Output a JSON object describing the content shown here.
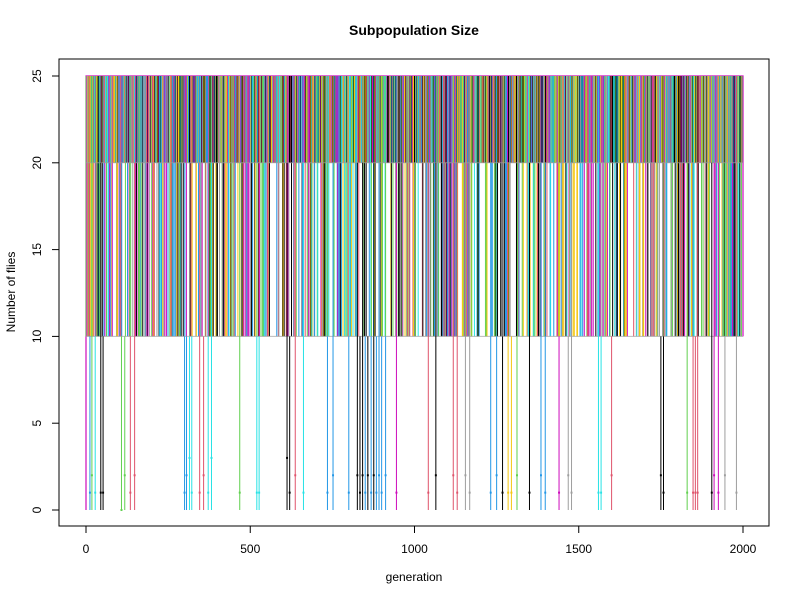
{
  "chart_data": {
    "type": "line",
    "title": "Subpopulation Size",
    "xlabel": "generation",
    "ylabel": "Number of flies",
    "xlim": [
      0,
      2000
    ],
    "ylim": [
      0,
      25
    ],
    "xticks": [
      0,
      500,
      1000,
      1500,
      2000
    ],
    "yticks": [
      0,
      5,
      10,
      15,
      20,
      25
    ],
    "plateau_levels": [
      25,
      20,
      10
    ],
    "colors": [
      "#000000",
      "#DF536B",
      "#61D04F",
      "#2297E6",
      "#28E2E5",
      "#CD0BBC",
      "#F5C710",
      "#9E9E9E"
    ],
    "low_dips": [
      {
        "x": 12,
        "y": 1,
        "c": 3
      },
      {
        "x": 18,
        "y": 2,
        "c": 2
      },
      {
        "x": 28,
        "y": 1,
        "c": 4
      },
      {
        "x": 45,
        "y": 1,
        "c": 0
      },
      {
        "x": 52,
        "y": 1,
        "c": 0
      },
      {
        "x": 108,
        "y": 0,
        "c": 2
      },
      {
        "x": 118,
        "y": 2,
        "c": 2
      },
      {
        "x": 135,
        "y": 1,
        "c": 1
      },
      {
        "x": 148,
        "y": 2,
        "c": 1
      },
      {
        "x": 300,
        "y": 1,
        "c": 3
      },
      {
        "x": 306,
        "y": 2,
        "c": 3
      },
      {
        "x": 315,
        "y": 3,
        "c": 4
      },
      {
        "x": 322,
        "y": 1,
        "c": 4
      },
      {
        "x": 346,
        "y": 1,
        "c": 1
      },
      {
        "x": 358,
        "y": 2,
        "c": 1
      },
      {
        "x": 372,
        "y": 1,
        "c": 4
      },
      {
        "x": 382,
        "y": 3,
        "c": 4
      },
      {
        "x": 468,
        "y": 1,
        "c": 2
      },
      {
        "x": 520,
        "y": 1,
        "c": 4
      },
      {
        "x": 527,
        "y": 1,
        "c": 4
      },
      {
        "x": 612,
        "y": 3,
        "c": 0
      },
      {
        "x": 620,
        "y": 1,
        "c": 0
      },
      {
        "x": 637,
        "y": 2,
        "c": 1
      },
      {
        "x": 662,
        "y": 1,
        "c": 4
      },
      {
        "x": 735,
        "y": 1,
        "c": 3
      },
      {
        "x": 752,
        "y": 2,
        "c": 3
      },
      {
        "x": 800,
        "y": 1,
        "c": 3
      },
      {
        "x": 826,
        "y": 2,
        "c": 0
      },
      {
        "x": 834,
        "y": 1,
        "c": 0
      },
      {
        "x": 842,
        "y": 2,
        "c": 0
      },
      {
        "x": 850,
        "y": 1,
        "c": 3
      },
      {
        "x": 858,
        "y": 2,
        "c": 0
      },
      {
        "x": 868,
        "y": 1,
        "c": 3
      },
      {
        "x": 876,
        "y": 2,
        "c": 0
      },
      {
        "x": 884,
        "y": 1,
        "c": 3
      },
      {
        "x": 892,
        "y": 2,
        "c": 3
      },
      {
        "x": 900,
        "y": 1,
        "c": 3
      },
      {
        "x": 912,
        "y": 2,
        "c": 3
      },
      {
        "x": 945,
        "y": 1,
        "c": 5
      },
      {
        "x": 1042,
        "y": 1,
        "c": 1
      },
      {
        "x": 1065,
        "y": 2,
        "c": 0
      },
      {
        "x": 1118,
        "y": 2,
        "c": 1
      },
      {
        "x": 1130,
        "y": 1,
        "c": 1
      },
      {
        "x": 1155,
        "y": 2,
        "c": 7
      },
      {
        "x": 1168,
        "y": 1,
        "c": 7
      },
      {
        "x": 1232,
        "y": 1,
        "c": 3
      },
      {
        "x": 1250,
        "y": 2,
        "c": 3
      },
      {
        "x": 1268,
        "y": 1,
        "c": 0
      },
      {
        "x": 1285,
        "y": 1,
        "c": 6
      },
      {
        "x": 1295,
        "y": 1,
        "c": 6
      },
      {
        "x": 1312,
        "y": 2,
        "c": 2
      },
      {
        "x": 1350,
        "y": 1,
        "c": 0
      },
      {
        "x": 1385,
        "y": 2,
        "c": 3
      },
      {
        "x": 1398,
        "y": 1,
        "c": 3
      },
      {
        "x": 1440,
        "y": 1,
        "c": 5
      },
      {
        "x": 1468,
        "y": 2,
        "c": 7
      },
      {
        "x": 1478,
        "y": 1,
        "c": 7
      },
      {
        "x": 1560,
        "y": 1,
        "c": 4
      },
      {
        "x": 1568,
        "y": 1,
        "c": 4
      },
      {
        "x": 1600,
        "y": 2,
        "c": 1
      },
      {
        "x": 1750,
        "y": 2,
        "c": 0
      },
      {
        "x": 1758,
        "y": 1,
        "c": 0
      },
      {
        "x": 1830,
        "y": 1,
        "c": 2
      },
      {
        "x": 1848,
        "y": 1,
        "c": 1
      },
      {
        "x": 1855,
        "y": 1,
        "c": 1
      },
      {
        "x": 1862,
        "y": 1,
        "c": 1
      },
      {
        "x": 1905,
        "y": 1,
        "c": 0
      },
      {
        "x": 1912,
        "y": 2,
        "c": 5
      },
      {
        "x": 1925,
        "y": 1,
        "c": 5
      },
      {
        "x": 1945,
        "y": 2,
        "c": 7
      },
      {
        "x": 1980,
        "y": 1,
        "c": 7
      }
    ]
  }
}
